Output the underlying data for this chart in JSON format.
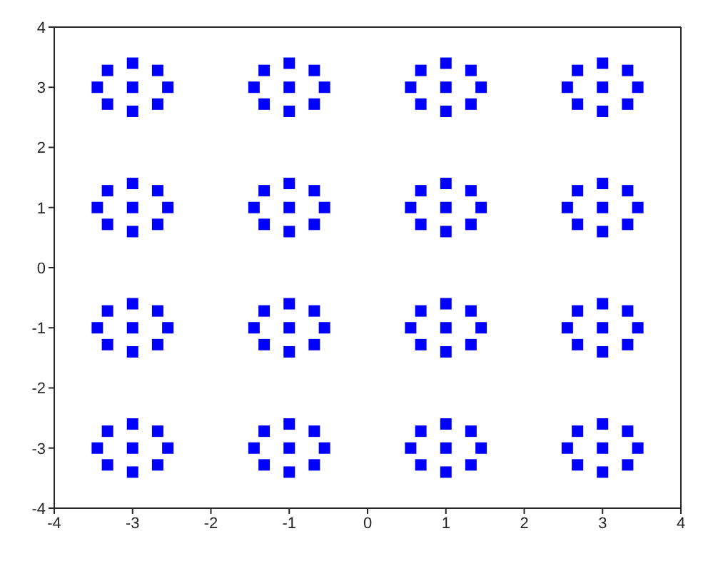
{
  "chart_data": {
    "type": "scatter",
    "xlim": [
      -4,
      4
    ],
    "ylim": [
      -4,
      4
    ],
    "xticks": [
      -4,
      -3,
      -2,
      -1,
      0,
      1,
      2,
      3,
      4
    ],
    "yticks": [
      -4,
      -3,
      -2,
      -1,
      0,
      1,
      2,
      3,
      4
    ],
    "marker": "square",
    "series": [
      {
        "color": "#0000ff",
        "x": [
          -3,
          -3.45,
          -2.55,
          -3,
          -3,
          -3.32,
          -2.68,
          -3.32,
          -2.68,
          -1,
          -1.45,
          -0.55,
          -1,
          -1,
          -1.32,
          -0.68,
          -1.32,
          -0.68,
          1,
          0.55,
          1.45,
          1,
          1,
          0.68,
          1.32,
          0.68,
          1.32,
          3,
          2.55,
          3.45,
          3,
          3,
          2.68,
          3.32,
          2.68,
          3.32,
          -3,
          -3.45,
          -2.55,
          -3,
          -3,
          -3.32,
          -2.68,
          -3.32,
          -2.68,
          -1,
          -1.45,
          -0.55,
          -1,
          -1,
          -1.32,
          -0.68,
          -1.32,
          -0.68,
          1,
          0.55,
          1.45,
          1,
          1,
          0.68,
          1.32,
          0.68,
          1.32,
          3,
          2.55,
          3.45,
          3,
          3,
          2.68,
          3.32,
          2.68,
          3.32,
          -3,
          -3.45,
          -2.55,
          -3,
          -3,
          -3.32,
          -2.68,
          -3.32,
          -2.68,
          -1,
          -1.45,
          -0.55,
          -1,
          -1,
          -1.32,
          -0.68,
          -1.32,
          -0.68,
          1,
          0.55,
          1.45,
          1,
          1,
          0.68,
          1.32,
          0.68,
          1.32,
          3,
          2.55,
          3.45,
          3,
          3,
          2.68,
          3.32,
          2.68,
          3.32,
          -3,
          -3.45,
          -2.55,
          -3,
          -3,
          -3.32,
          -2.68,
          -3.32,
          -2.68,
          -1,
          -1.45,
          -0.55,
          -1,
          -1,
          -1.32,
          -0.68,
          -1.32,
          -0.68,
          1,
          0.55,
          1.45,
          1,
          1,
          0.68,
          1.32,
          0.68,
          1.32,
          3,
          2.55,
          3.45,
          3,
          3,
          2.68,
          3.32,
          2.68,
          3.32
        ],
        "values": [
          3,
          3,
          3,
          3.4,
          2.6,
          3.28,
          3.28,
          2.72,
          2.72,
          3,
          3,
          3,
          3.4,
          2.6,
          3.28,
          3.28,
          2.72,
          2.72,
          3,
          3,
          3,
          3.4,
          2.6,
          3.28,
          3.28,
          2.72,
          2.72,
          3,
          3,
          3,
          3.4,
          2.6,
          3.28,
          3.28,
          2.72,
          2.72,
          1,
          1,
          1,
          1.4,
          0.6,
          1.28,
          1.28,
          0.72,
          0.72,
          1,
          1,
          1,
          1.4,
          0.6,
          1.28,
          1.28,
          0.72,
          0.72,
          1,
          1,
          1,
          1.4,
          0.6,
          1.28,
          1.28,
          0.72,
          0.72,
          1,
          1,
          1,
          1.4,
          0.6,
          1.28,
          1.28,
          0.72,
          0.72,
          -1,
          -1,
          -1,
          -0.6,
          -1.4,
          -0.72,
          -0.72,
          -1.28,
          -1.28,
          -1,
          -1,
          -1,
          -0.6,
          -1.4,
          -0.72,
          -0.72,
          -1.28,
          -1.28,
          -1,
          -1,
          -1,
          -0.6,
          -1.4,
          -0.72,
          -0.72,
          -1.28,
          -1.28,
          -1,
          -1,
          -1,
          -0.6,
          -1.4,
          -0.72,
          -0.72,
          -1.28,
          -1.28,
          -3,
          -3,
          -3,
          -2.6,
          -3.4,
          -2.72,
          -2.72,
          -3.28,
          -3.28,
          -3,
          -3,
          -3,
          -2.6,
          -3.4,
          -2.72,
          -2.72,
          -3.28,
          -3.28,
          -3,
          -3,
          -3,
          -2.6,
          -3.4,
          -2.72,
          -2.72,
          -3.28,
          -3.28,
          -3,
          -3,
          -3,
          -2.6,
          -3.4,
          -2.72,
          -2.72,
          -3.28,
          -3.28
        ]
      }
    ]
  }
}
